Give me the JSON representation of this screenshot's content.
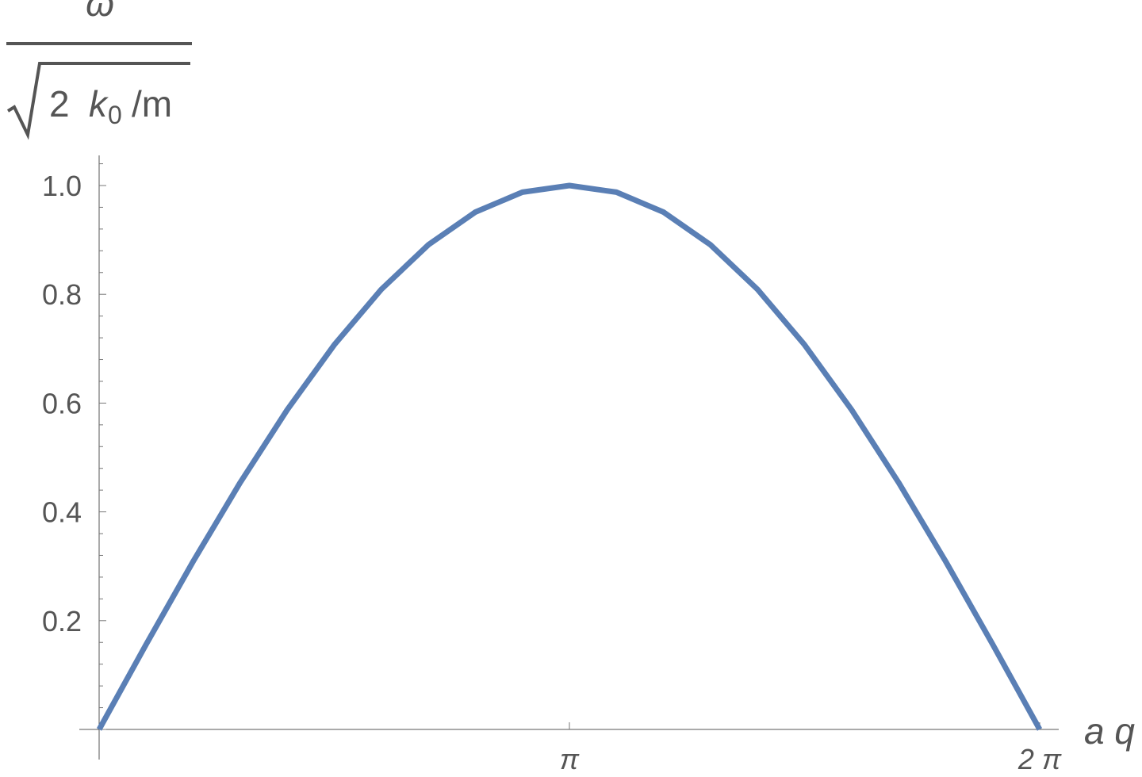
{
  "chart_data": {
    "type": "line",
    "title": "",
    "xlabel": "a q",
    "ylabel": {
      "numerator": "ω",
      "radicand_coefficient": "2",
      "radicand_symbol": "k",
      "radicand_subscript": "0",
      "radicand_divisor": "/m"
    },
    "xlim": [
      0,
      6.2832
    ],
    "ylim": [
      0,
      1.0
    ],
    "x_ticks": [
      {
        "value": 3.14159,
        "label": "π"
      },
      {
        "value": 6.28319,
        "label": "2 π"
      }
    ],
    "y_ticks": [
      {
        "value": 0.2,
        "label": "0.2"
      },
      {
        "value": 0.4,
        "label": "0.4"
      },
      {
        "value": 0.6,
        "label": "0.6"
      },
      {
        "value": 0.8,
        "label": "0.8"
      },
      {
        "value": 1.0,
        "label": "1.0"
      }
    ],
    "grid": false,
    "series": [
      {
        "color": "#5a7fb5",
        "x": [
          0,
          0.3142,
          0.6283,
          0.9425,
          1.2566,
          1.5708,
          1.885,
          2.1991,
          2.5133,
          2.8274,
          3.1416,
          3.4558,
          3.7699,
          4.0841,
          4.3982,
          4.7124,
          5.0265,
          5.3407,
          5.6549,
          5.969,
          6.2832
        ],
        "y": [
          0,
          0.1564,
          0.309,
          0.454,
          0.5878,
          0.7071,
          0.809,
          0.891,
          0.9511,
          0.9877,
          1.0,
          0.9877,
          0.9511,
          0.891,
          0.809,
          0.7071,
          0.5878,
          0.454,
          0.309,
          0.1564,
          0
        ]
      }
    ]
  }
}
